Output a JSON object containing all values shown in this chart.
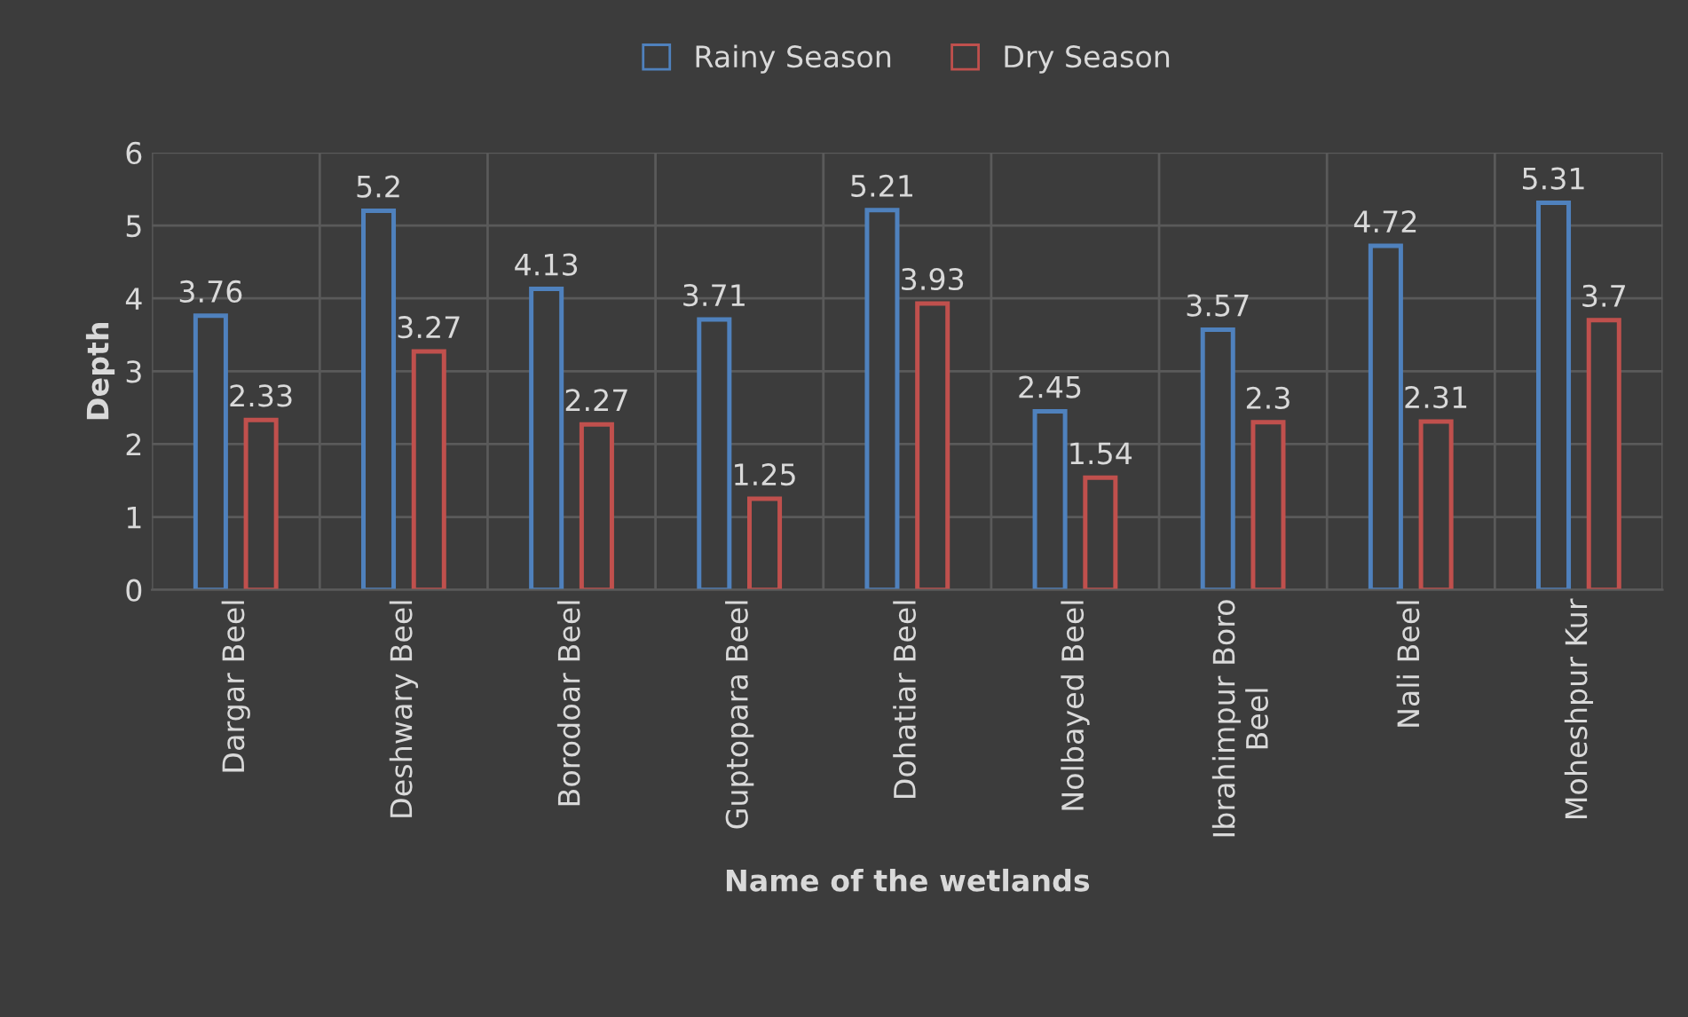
{
  "chart_data": {
    "type": "bar",
    "xlabel": "Name of the wetlands",
    "ylabel": "Depth",
    "categories": [
      "Dargar Beel",
      "Deshwary Beel",
      "Borodoar Beel",
      "Guptopara Beel",
      "Dohatiar Beel",
      "Nolbayed Beel",
      "Ibrahimpur Boro\nBeel",
      "Nali Beel",
      "Moheshpur Kur"
    ],
    "series": [
      {
        "name": "Rainy Season",
        "color": "#4f81bd",
        "values": [
          3.76,
          5.2,
          4.13,
          3.71,
          5.21,
          2.45,
          3.57,
          4.72,
          5.31
        ]
      },
      {
        "name": "Dry Season",
        "color": "#c0504d",
        "values": [
          2.33,
          3.27,
          2.27,
          1.25,
          3.93,
          1.54,
          2.3,
          2.31,
          3.7
        ]
      }
    ],
    "ylim": [
      0,
      6
    ],
    "yticks": [
      0,
      1,
      2,
      3,
      4,
      5,
      6
    ],
    "grid": true,
    "legend": "top",
    "data_labels": true
  }
}
